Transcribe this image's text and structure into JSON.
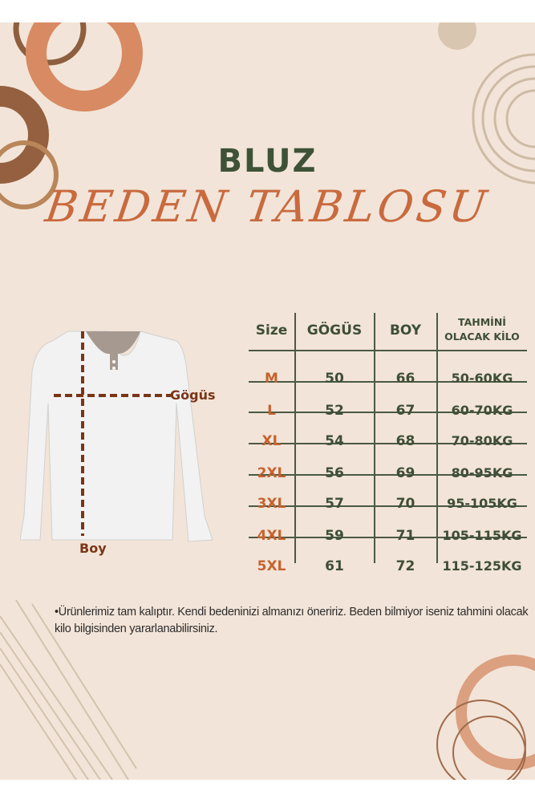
{
  "title": "BLUZ",
  "subtitle": "BEDEN TABLOSU",
  "diagram": {
    "chest_label": "Gögüs",
    "length_label": "Boy"
  },
  "table": {
    "headers": [
      "Size",
      "GÖGÜS",
      "BOY",
      "TAHMİNİ",
      "OLACAK KİLO"
    ],
    "rows": [
      [
        "M",
        "50",
        "66",
        "50-60KG"
      ],
      [
        "L",
        "52",
        "67",
        "60-70KG"
      ],
      [
        "XL",
        "54",
        "68",
        "70-80KG"
      ],
      [
        "2XL",
        "56",
        "69",
        "80-95KG"
      ],
      [
        "3XL",
        "57",
        "70",
        "95-105KG"
      ],
      [
        "4XL",
        "59",
        "71",
        "105-115KG"
      ],
      [
        "5XL",
        "61",
        "72",
        "115-125KG"
      ]
    ]
  },
  "note": "•Ürünlerimiz tam kalıptır. Kendi bedeninizi almanızı öneririz. Beden bilmiyor iseniz tahmini olacak kilo bilgisinden yararlanabilirsiniz.",
  "colors": {
    "background": "#f2e4d8",
    "title": "#3e5238",
    "accent": "#c96a3e",
    "table_text": "#3e4e37"
  }
}
